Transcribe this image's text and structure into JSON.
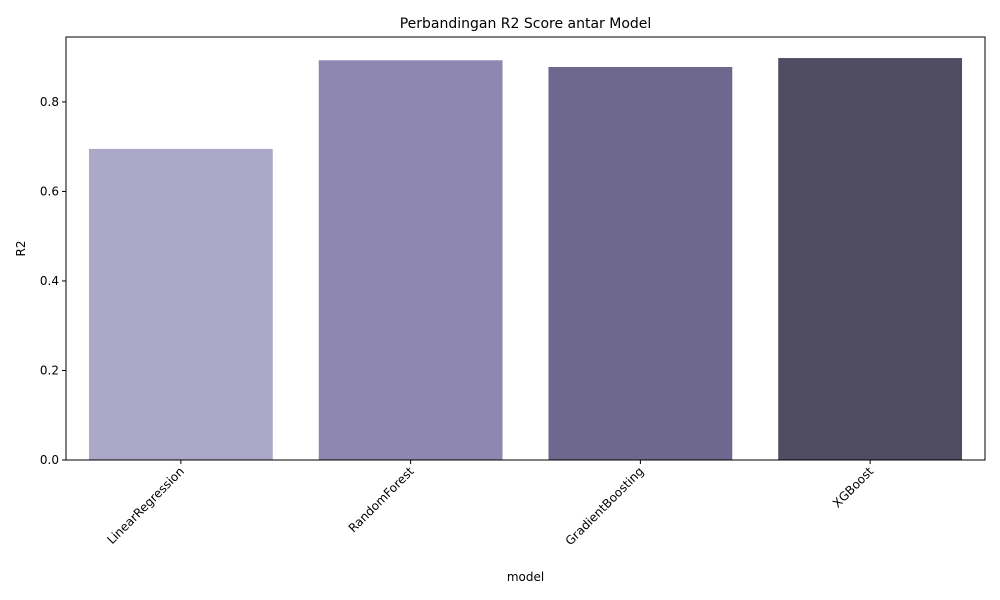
{
  "chart_data": {
    "type": "bar",
    "title": "Perbandingan R2 Score antar Model",
    "xlabel": "model",
    "ylabel": "R2",
    "categories": [
      "LinearRegression",
      "RandomForest",
      "GradientBoosting",
      "XGBoost"
    ],
    "values": [
      0.695,
      0.893,
      0.878,
      0.898
    ],
    "colors": [
      "#aca9c8",
      "#8d87b2",
      "#6e688f",
      "#504d63"
    ],
    "ylim": [
      0,
      0.945
    ],
    "yticks": [
      0.0,
      0.2,
      0.4,
      0.6,
      0.8
    ],
    "ytick_labels": [
      "0.0",
      "0.2",
      "0.4",
      "0.6",
      "0.8"
    ],
    "xtick_rotation": 45,
    "grid": false,
    "legend": false
  }
}
